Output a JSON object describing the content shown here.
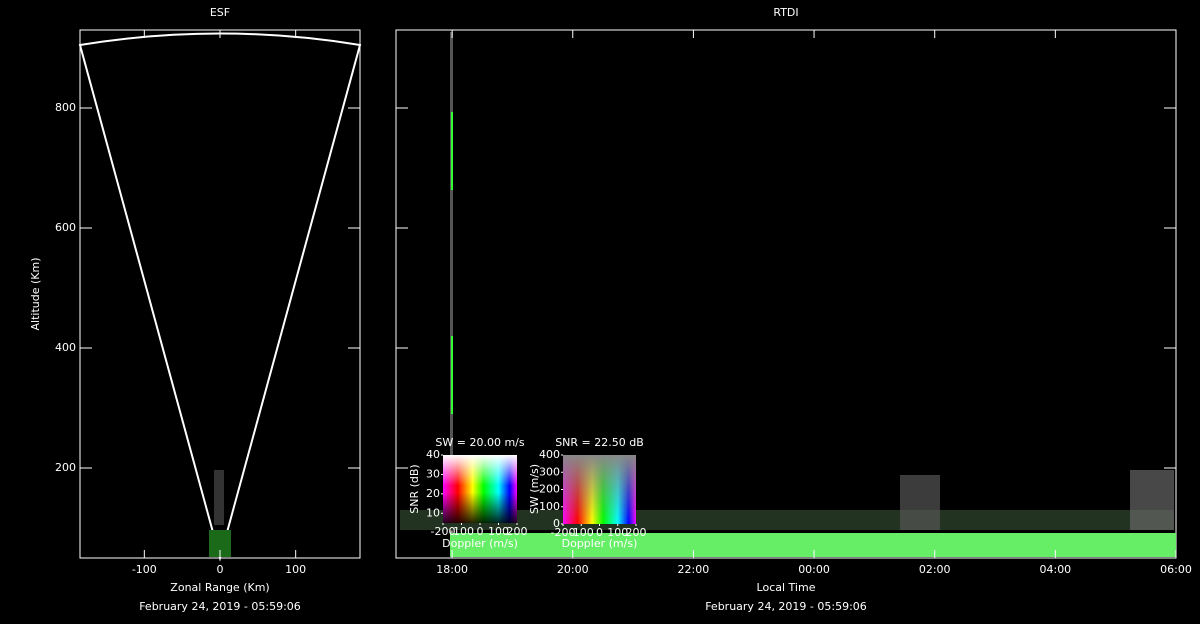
{
  "chart_data": [
    {
      "type": "sector",
      "title": "ESF",
      "xlabel": "Zonal Range (Km)",
      "ylabel": "Altitude (Km)",
      "xlim": [
        -185,
        185
      ],
      "ylim": [
        50,
        930
      ],
      "xticks": [
        -100,
        0,
        100
      ],
      "yticks": [
        200,
        400,
        600,
        800
      ],
      "footer": "February 24, 2019 - 05:59:06"
    },
    {
      "type": "rtdi",
      "title": "RTDI",
      "xlabel": "Local Time",
      "xlim": [
        17.07,
        30
      ],
      "ylim": [
        50,
        930
      ],
      "xticks": [
        {
          "value": 18,
          "label": "18:00"
        },
        {
          "value": 20,
          "label": "20:00"
        },
        {
          "value": 22,
          "label": "22:00"
        },
        {
          "value": 24,
          "label": "00:00"
        },
        {
          "value": 26,
          "label": "02:00"
        },
        {
          "value": 28,
          "label": "04:00"
        },
        {
          "value": 30,
          "label": "06:00"
        }
      ],
      "yticks": [
        200,
        400,
        600,
        800
      ],
      "footer": "February 24, 2019 - 05:59:06",
      "insets": [
        {
          "title": "SW = 20.00 m/s",
          "ylabel": "SNR (dB)",
          "xlabel": "Doppler (m/s)",
          "xlim": [
            -200,
            200
          ],
          "ylim": [
            5,
            40
          ],
          "xticks": [
            -200,
            -100,
            0,
            100,
            200
          ],
          "yticks": [
            10,
            20,
            30,
            40
          ]
        },
        {
          "title": "SNR = 22.50 dB",
          "ylabel": "SW (m/s)",
          "xlabel": "Doppler (m/s)",
          "xlim": [
            -200,
            200
          ],
          "ylim": [
            0,
            400
          ],
          "xticks": [
            -200,
            -100,
            0,
            100,
            200
          ],
          "yticks": [
            0,
            100,
            200,
            300,
            400
          ]
        }
      ]
    }
  ]
}
